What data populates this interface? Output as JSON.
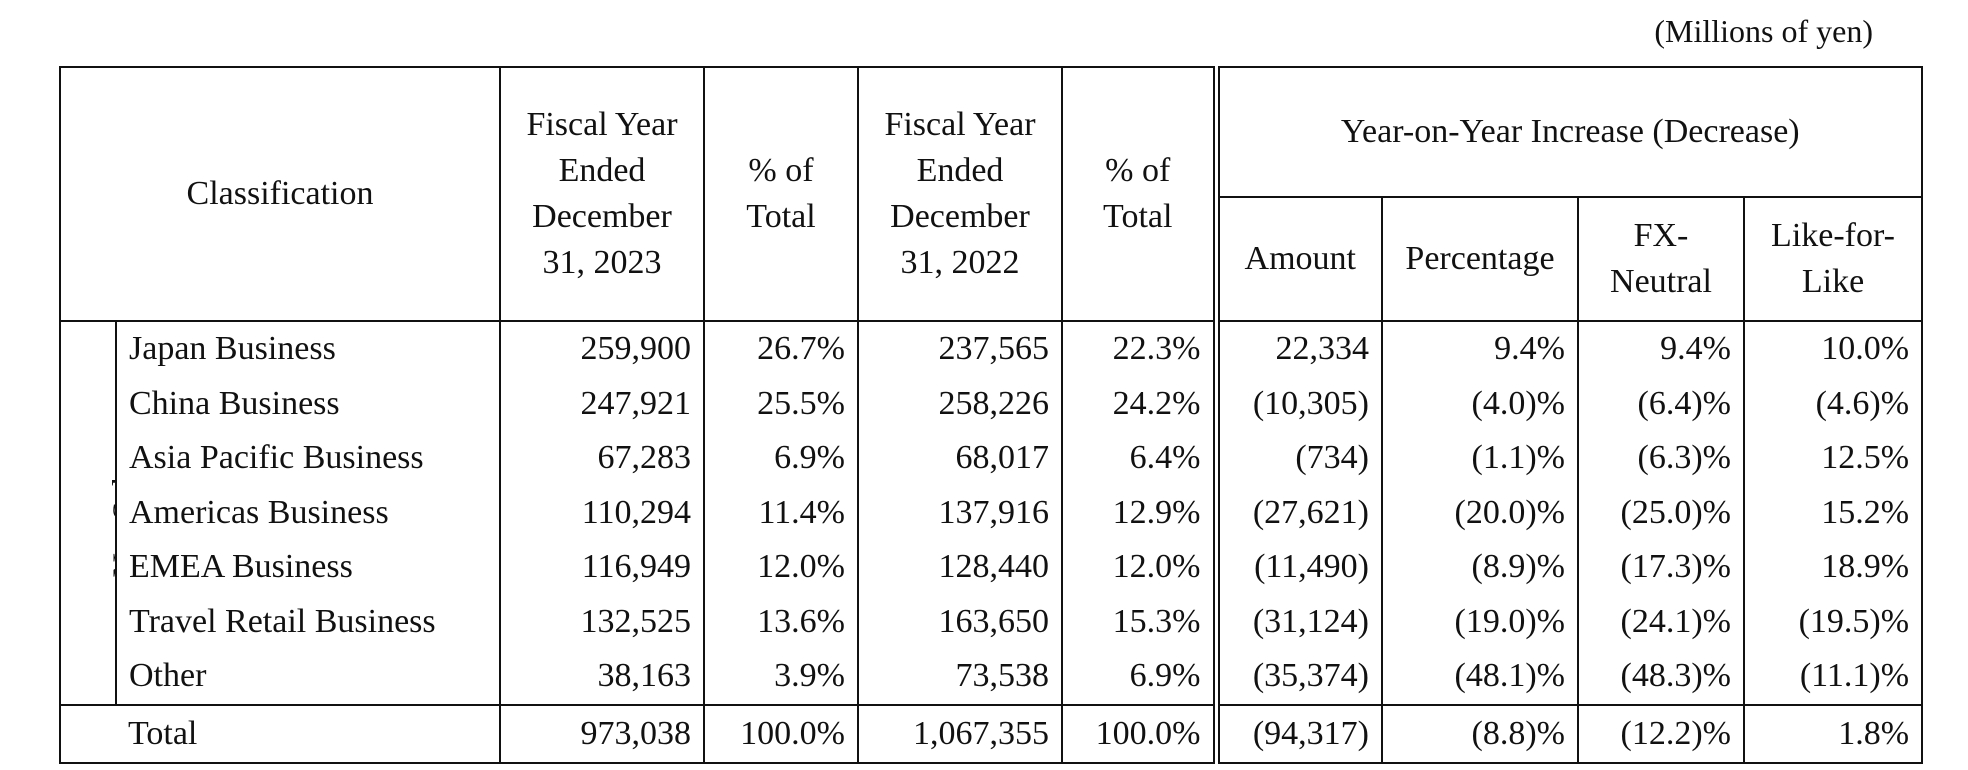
{
  "unit_note": "(Millions of yen)",
  "headers": {
    "classification": "Classification",
    "fy2023": "Fiscal Year Ended December 31, 2023",
    "pct_total_2023": "% of Total",
    "fy2022": "Fiscal Year Ended December 31, 2022",
    "pct_total_2022": "% of Total",
    "yoy_group": "Year-on-Year Increase (Decrease)",
    "amount": "Amount",
    "percentage": "Percentage",
    "fx_neutral": "FX-Neutral",
    "like_for_like": "Like-for-Like"
  },
  "group_label": "Net Sales",
  "rows": [
    {
      "label": "Japan Business",
      "fy2023": "259,900",
      "pct2023": "26.7%",
      "fy2022": "237,565",
      "pct2022": "22.3%",
      "amount": "22,334",
      "percentage": "9.4%",
      "fx": "9.4%",
      "lfl": "10.0%"
    },
    {
      "label": "China Business",
      "fy2023": "247,921",
      "pct2023": "25.5%",
      "fy2022": "258,226",
      "pct2022": "24.2%",
      "amount": "(10,305)",
      "percentage": "(4.0)%",
      "fx": "(6.4)%",
      "lfl": "(4.6)%"
    },
    {
      "label": "Asia Pacific Business",
      "fy2023": "67,283",
      "pct2023": "6.9%",
      "fy2022": "68,017",
      "pct2022": "6.4%",
      "amount": "(734)",
      "percentage": "(1.1)%",
      "fx": "(6.3)%",
      "lfl": "12.5%"
    },
    {
      "label": "Americas Business",
      "fy2023": "110,294",
      "pct2023": "11.4%",
      "fy2022": "137,916",
      "pct2022": "12.9%",
      "amount": "(27,621)",
      "percentage": "(20.0)%",
      "fx": "(25.0)%",
      "lfl": "15.2%"
    },
    {
      "label": "EMEA Business",
      "fy2023": "116,949",
      "pct2023": "12.0%",
      "fy2022": "128,440",
      "pct2022": "12.0%",
      "amount": "(11,490)",
      "percentage": "(8.9)%",
      "fx": "(17.3)%",
      "lfl": "18.9%"
    },
    {
      "label": "Travel Retail Business",
      "fy2023": "132,525",
      "pct2023": "13.6%",
      "fy2022": "163,650",
      "pct2022": "15.3%",
      "amount": "(31,124)",
      "percentage": "(19.0)%",
      "fx": "(24.1)%",
      "lfl": "(19.5)%"
    },
    {
      "label": "Other",
      "fy2023": "38,163",
      "pct2023": "3.9%",
      "fy2022": "73,538",
      "pct2022": "6.9%",
      "amount": "(35,374)",
      "percentage": "(48.1)%",
      "fx": "(48.3)%",
      "lfl": "(11.1)%"
    }
  ],
  "total": {
    "label": "Total",
    "fy2023": "973,038",
    "pct2023": "100.0%",
    "fy2022": "1,067,355",
    "pct2022": "100.0%",
    "amount": "(94,317)",
    "percentage": "(8.8)%",
    "fx": "(12.2)%",
    "lfl": "1.8%"
  }
}
